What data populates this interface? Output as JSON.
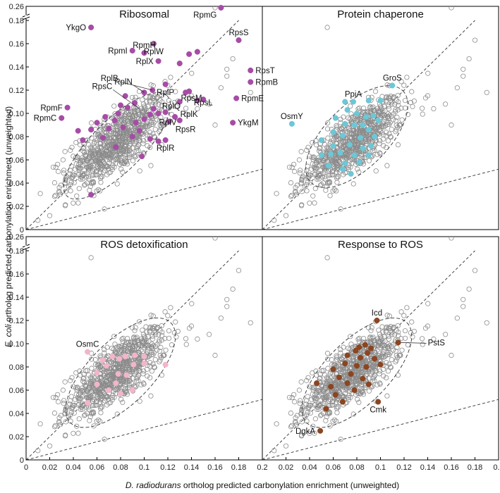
{
  "chart_data": {
    "type": "scatter",
    "xlabel": "D. radiodurans ortholog predicted carbonylation enrichment (unweighted)",
    "xlabel_italic_part": "D. radiodurans",
    "xlabel_rest": " ortholog predicted carbonylation enrichment (unweighted)",
    "ylabel_italic_part": "E. coli",
    "ylabel_rest": " ortholog predicted carbonylation enrichment (unweighted)",
    "xlim": [
      0,
      0.2
    ],
    "ylim": [
      0,
      0.26
    ],
    "x_ticks": [
      "0",
      "0.02",
      "0.04",
      "0.06",
      "0.08",
      "0.1",
      "0.12",
      "0.14",
      "0.16",
      "0.18",
      "0.2"
    ],
    "y_ticks": [
      "0",
      "0.02",
      "0.04",
      "0.06",
      "0.08",
      "0.10",
      "0.12",
      "0.14",
      "0.16",
      "0.18",
      "0.26"
    ],
    "y_axis_break": "between 0.18 and 0.26",
    "reference_lines": [
      {
        "slope": 1,
        "intercept": 0
      },
      {
        "slope": 0.26,
        "intercept": 0
      }
    ],
    "background_points_description": "about 800 hollow grey circles, centered near (0.075, 0.075), identical in all four panels",
    "background_outliers": [
      [
        0.055,
        0.174
      ],
      [
        0.16,
        0.26
      ],
      [
        0.175,
        0.147
      ],
      [
        0.17,
        0.138
      ],
      [
        0.165,
        0.122
      ],
      [
        0.18,
        0.163
      ],
      [
        0.17,
        0.132
      ],
      [
        0.16,
        0.09
      ],
      [
        0.01,
        0.008
      ],
      [
        0.02,
        0.012
      ],
      [
        0.012,
        0.031
      ],
      [
        0.028,
        0.032
      ],
      [
        0.155,
        0.108
      ],
      [
        0.145,
        0.104
      ],
      [
        0.19,
        0.118
      ]
    ],
    "panels": [
      {
        "title": "Ribosomal",
        "color": "#a64ca6",
        "ellipse": {
          "cx": 0.077,
          "cy": 0.072,
          "rx": 0.06,
          "ry": 0.022,
          "angle": 45
        },
        "points": [
          [
            0.165,
            0.26
          ],
          [
            0.055,
            0.174
          ],
          [
            0.18,
            0.163
          ],
          [
            0.108,
            0.16
          ],
          [
            0.09,
            0.154
          ],
          [
            0.1,
            0.152
          ],
          [
            0.138,
            0.151
          ],
          [
            0.145,
            0.153
          ],
          [
            0.112,
            0.145
          ],
          [
            0.13,
            0.143
          ],
          [
            0.19,
            0.137
          ],
          [
            0.19,
            0.127
          ],
          [
            0.178,
            0.113
          ],
          [
            0.118,
            0.125
          ],
          [
            0.107,
            0.12
          ],
          [
            0.1,
            0.118
          ],
          [
            0.135,
            0.118
          ],
          [
            0.138,
            0.119
          ],
          [
            0.13,
            0.11
          ],
          [
            0.145,
            0.111
          ],
          [
            0.15,
            0.112
          ],
          [
            0.035,
            0.105
          ],
          [
            0.03,
            0.096
          ],
          [
            0.118,
            0.101
          ],
          [
            0.112,
            0.1
          ],
          [
            0.105,
            0.099
          ],
          [
            0.126,
            0.097
          ],
          [
            0.13,
            0.094
          ],
          [
            0.175,
            0.092
          ],
          [
            0.118,
            0.077
          ],
          [
            0.112,
            0.076
          ],
          [
            0.086,
            0.105
          ],
          [
            0.078,
            0.1
          ],
          [
            0.067,
            0.097
          ],
          [
            0.075,
            0.094
          ],
          [
            0.093,
            0.092
          ],
          [
            0.06,
            0.092
          ],
          [
            0.082,
            0.088
          ],
          [
            0.07,
            0.087
          ],
          [
            0.044,
            0.085
          ],
          [
            0.055,
            0.086
          ],
          [
            0.1,
            0.095
          ],
          [
            0.096,
            0.085
          ],
          [
            0.09,
            0.08
          ],
          [
            0.065,
            0.079
          ],
          [
            0.105,
            0.078
          ],
          [
            0.076,
            0.071
          ],
          [
            0.098,
            0.063
          ],
          [
            0.055,
            0.03
          ],
          [
            0.08,
            0.107
          ],
          [
            0.092,
            0.109
          ],
          [
            0.048,
            0.077
          ],
          [
            0.084,
            0.115
          ],
          [
            0.108,
            0.104
          ],
          [
            0.121,
            0.093
          ]
        ],
        "labels": [
          {
            "text": "RpmG",
            "x": 0.165,
            "y": 0.26,
            "anchor": "sw"
          },
          {
            "text": "YkgO",
            "x": 0.055,
            "y": 0.174,
            "anchor": "w"
          },
          {
            "text": "RpsS",
            "x": 0.18,
            "y": 0.163,
            "anchor": "s"
          },
          {
            "text": "RplW",
            "x": 0.108,
            "y": 0.16,
            "anchor": "n"
          },
          {
            "text": "RpmI",
            "x": 0.09,
            "y": 0.154,
            "anchor": "w"
          },
          {
            "text": "RpmH",
            "x": 0.1,
            "y": 0.152,
            "anchor": "s"
          },
          {
            "text": "RplX",
            "x": 0.112,
            "y": 0.145,
            "anchor": "w"
          },
          {
            "text": "RpsT",
            "x": 0.19,
            "y": 0.137,
            "anchor": "e"
          },
          {
            "text": "RpmB",
            "x": 0.19,
            "y": 0.127,
            "anchor": "e"
          },
          {
            "text": "RplB",
            "x": 0.078,
            "y": 0.128,
            "anchor": "w",
            "line_to": [
              0.107,
              0.12
            ]
          },
          {
            "text": "RplN",
            "x": 0.09,
            "y": 0.125,
            "anchor": "w",
            "line_to": [
              0.1,
              0.118
            ]
          },
          {
            "text": "RplP",
            "x": 0.118,
            "y": 0.125,
            "anchor": "n"
          },
          {
            "text": "RpsC",
            "x": 0.073,
            "y": 0.121,
            "anchor": "w",
            "line_to": [
              0.096,
              0.104
            ]
          },
          {
            "text": "RpsM",
            "x": 0.14,
            "y": 0.12,
            "anchor": "n"
          },
          {
            "text": "RplQ",
            "x": 0.123,
            "y": 0.113,
            "anchor": "n"
          },
          {
            "text": "RpsL",
            "x": 0.15,
            "y": 0.116,
            "anchor": "n"
          },
          {
            "text": "RpmE",
            "x": 0.178,
            "y": 0.113,
            "anchor": "e"
          },
          {
            "text": "RpmF",
            "x": 0.035,
            "y": 0.105,
            "anchor": "w"
          },
          {
            "text": "RplK",
            "x": 0.138,
            "y": 0.106,
            "anchor": "n"
          },
          {
            "text": "RplV",
            "x": 0.12,
            "y": 0.099,
            "anchor": "n"
          },
          {
            "text": "RpmC",
            "x": 0.03,
            "y": 0.096,
            "anchor": "w"
          },
          {
            "text": "RpsR",
            "x": 0.135,
            "y": 0.093,
            "anchor": "n"
          },
          {
            "text": "YkgM",
            "x": 0.175,
            "y": 0.092,
            "anchor": "e"
          },
          {
            "text": "RplR",
            "x": 0.118,
            "y": 0.077,
            "anchor": "n"
          }
        ]
      },
      {
        "title": "Protein chaperone",
        "color": "#6cc7d6",
        "ellipse": {
          "cx": 0.08,
          "cy": 0.08,
          "rx": 0.055,
          "ry": 0.027,
          "angle": 45
        },
        "points": [
          [
            0.11,
            0.124
          ],
          [
            0.07,
            0.11
          ],
          [
            0.077,
            0.11
          ],
          [
            0.09,
            0.111
          ],
          [
            0.1,
            0.111
          ],
          [
            0.025,
            0.091
          ],
          [
            0.072,
            0.103
          ],
          [
            0.08,
            0.1
          ],
          [
            0.088,
            0.097
          ],
          [
            0.094,
            0.098
          ],
          [
            0.062,
            0.096
          ],
          [
            0.098,
            0.094
          ],
          [
            0.07,
            0.091
          ],
          [
            0.078,
            0.09
          ],
          [
            0.085,
            0.09
          ],
          [
            0.09,
            0.086
          ],
          [
            0.06,
            0.084
          ],
          [
            0.068,
            0.081
          ],
          [
            0.083,
            0.079
          ],
          [
            0.095,
            0.08
          ],
          [
            0.05,
            0.077
          ],
          [
            0.074,
            0.073
          ],
          [
            0.06,
            0.072
          ],
          [
            0.085,
            0.07
          ],
          [
            0.092,
            0.072
          ],
          [
            0.066,
            0.066
          ],
          [
            0.078,
            0.064
          ],
          [
            0.058,
            0.065
          ],
          [
            0.05,
            0.064
          ],
          [
            0.07,
            0.057
          ],
          [
            0.082,
            0.058
          ],
          [
            0.056,
            0.055
          ],
          [
            0.075,
            0.048
          ],
          [
            0.068,
            0.052
          ],
          [
            0.09,
            0.064
          ]
        ],
        "labels": [
          {
            "text": "GroS",
            "x": 0.11,
            "y": 0.124,
            "anchor": "s"
          },
          {
            "text": "PpiA",
            "x": 0.077,
            "y": 0.11,
            "anchor": "s"
          },
          {
            "text": "OsmY",
            "x": 0.025,
            "y": 0.091,
            "anchor": "s"
          }
        ]
      },
      {
        "title": "ROS detoxification",
        "color": "#f2b5c9",
        "ellipse": {
          "cx": 0.08,
          "cy": 0.075,
          "rx": 0.06,
          "ry": 0.027,
          "angle": 45
        },
        "points": [
          [
            0.052,
            0.093
          ],
          [
            0.065,
            0.086
          ],
          [
            0.073,
            0.089
          ],
          [
            0.084,
            0.089
          ],
          [
            0.092,
            0.09
          ],
          [
            0.1,
            0.089
          ],
          [
            0.079,
            0.087
          ],
          [
            0.091,
            0.082
          ],
          [
            0.068,
            0.081
          ],
          [
            0.06,
            0.075
          ],
          [
            0.078,
            0.074
          ],
          [
            0.085,
            0.073
          ],
          [
            0.1,
            0.083
          ],
          [
            0.118,
            0.082
          ],
          [
            0.076,
            0.066
          ],
          [
            0.07,
            0.06
          ],
          [
            0.08,
            0.057
          ],
          [
            0.06,
            0.065
          ],
          [
            0.052,
            0.049
          ],
          [
            0.09,
            0.06
          ]
        ],
        "labels": [
          {
            "text": "OsmC",
            "x": 0.052,
            "y": 0.093,
            "anchor": "s"
          }
        ]
      },
      {
        "title": "Response to ROS",
        "color": "#8b4520",
        "ellipse": {
          "cx": 0.08,
          "cy": 0.075,
          "rx": 0.06,
          "ry": 0.027,
          "angle": 45
        },
        "points": [
          [
            0.097,
            0.12
          ],
          [
            0.115,
            0.101
          ],
          [
            0.098,
            0.05
          ],
          [
            0.049,
            0.025
          ],
          [
            0.087,
            0.099
          ],
          [
            0.082,
            0.097
          ],
          [
            0.092,
            0.096
          ],
          [
            0.079,
            0.094
          ],
          [
            0.089,
            0.092
          ],
          [
            0.072,
            0.09
          ],
          [
            0.083,
            0.088
          ],
          [
            0.095,
            0.087
          ],
          [
            0.07,
            0.083
          ],
          [
            0.08,
            0.081
          ],
          [
            0.088,
            0.08
          ],
          [
            0.06,
            0.078
          ],
          [
            0.075,
            0.074
          ],
          [
            0.065,
            0.071
          ],
          [
            0.085,
            0.07
          ],
          [
            0.072,
            0.066
          ],
          [
            0.046,
            0.066
          ],
          [
            0.058,
            0.063
          ],
          [
            0.078,
            0.06
          ],
          [
            0.09,
            0.065
          ],
          [
            0.054,
            0.044
          ],
          [
            0.068,
            0.05
          ],
          [
            0.062,
            0.056
          ],
          [
            0.1,
            0.082
          ]
        ],
        "labels": [
          {
            "text": "Icd",
            "x": 0.097,
            "y": 0.12,
            "anchor": "s"
          },
          {
            "text": "PstS",
            "x": 0.115,
            "y": 0.101,
            "anchor": "e",
            "line_to_label": true
          },
          {
            "text": "Cmk",
            "x": 0.098,
            "y": 0.05,
            "anchor": "n"
          },
          {
            "text": "DgkA",
            "x": 0.049,
            "y": 0.025,
            "anchor": "w"
          }
        ]
      }
    ]
  }
}
